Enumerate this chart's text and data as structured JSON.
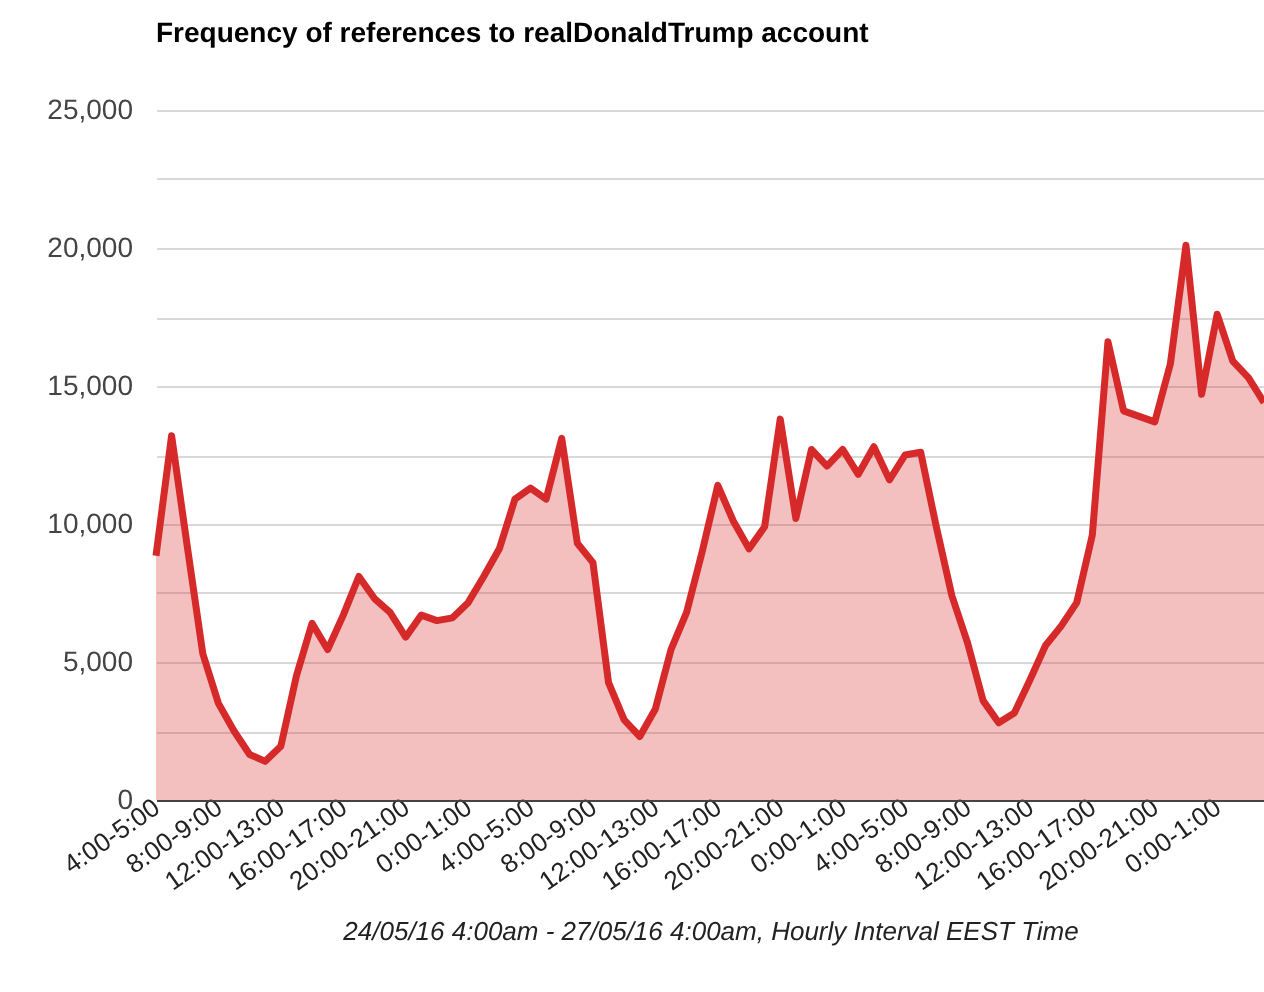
{
  "chart_data": {
    "type": "area",
    "title": "Frequency of references to realDonaldTrump account",
    "xlabel": "24/05/16 4:00am - 27/05/16 4:00am, Hourly Interval EEST Time",
    "categories": [
      "4:00-5:00",
      null,
      null,
      null,
      "8:00-9:00",
      null,
      null,
      null,
      "12:00-13:00",
      null,
      null,
      null,
      "16:00-17:00",
      null,
      null,
      null,
      "20:00-21:00",
      null,
      null,
      null,
      "0:00-1:00",
      null,
      null,
      null,
      "4:00-5:00",
      null,
      null,
      null,
      "8:00-9:00",
      null,
      null,
      null,
      "12:00-13:00",
      null,
      null,
      null,
      "16:00-17:00",
      null,
      null,
      null,
      "20:00-21:00",
      null,
      null,
      null,
      "0:00-1:00",
      null,
      null,
      null,
      "4:00-5:00",
      null,
      null,
      null,
      "8:00-9:00",
      null,
      null,
      null,
      "12:00-13:00",
      null,
      null,
      null,
      "16:00-17:00",
      null,
      null,
      null,
      "20:00-21:00",
      null,
      null,
      null,
      "0:00-1:00",
      null,
      null,
      null
    ],
    "series": [
      {
        "color": "#d62a2a",
        "values": [
          8850,
          13200,
          9200,
          5300,
          3500,
          2500,
          1650,
          1400,
          1950,
          4500,
          6400,
          5450,
          6700,
          8100,
          7300,
          6800,
          5900,
          6700,
          6500,
          6600,
          7150,
          8100,
          9100,
          10900,
          11300,
          10900,
          13100,
          9300,
          8600,
          4250,
          2900,
          2300,
          3300,
          5450,
          6800,
          9000,
          11400,
          10100,
          9100,
          9900,
          13800,
          10200,
          12700,
          12100,
          12700,
          11800,
          12800,
          11600,
          12500,
          12600,
          9900,
          7400,
          5700,
          3600,
          2800,
          3150,
          4350,
          5600,
          6300,
          7150,
          9600,
          16600,
          14100,
          13900,
          13700,
          15800,
          20100,
          14700,
          17600,
          15900,
          15300,
          14400
        ]
      }
    ],
    "ylim": [
      0,
      25000
    ],
    "yticks": [
      {
        "value": 0,
        "label": "0"
      },
      {
        "value": 2500,
        "label": null
      },
      {
        "value": 5000,
        "label": "5,000"
      },
      {
        "value": 7500,
        "label": null
      },
      {
        "value": 10000,
        "label": "10,000"
      },
      {
        "value": 12500,
        "label": null
      },
      {
        "value": 15000,
        "label": "15,000"
      },
      {
        "value": 17500,
        "label": null
      },
      {
        "value": 20000,
        "label": "20,000"
      },
      {
        "value": 22500,
        "label": null
      },
      {
        "value": 25000,
        "label": "25,000"
      }
    ],
    "grid": "y"
  }
}
